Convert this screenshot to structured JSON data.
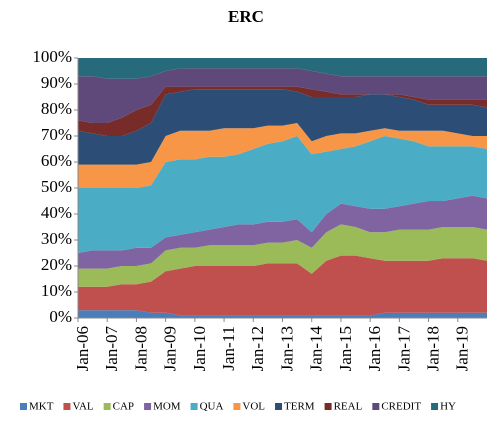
{
  "chart_data": {
    "type": "stacked_area",
    "title": "ERC",
    "categories": [
      "Jan-06",
      null,
      "Jan-07",
      null,
      "Jan-08",
      null,
      "Jan-09",
      null,
      "Jan-10",
      null,
      "Jan-11",
      null,
      "Jan-12",
      null,
      "Jan-13",
      null,
      "Jan-14",
      null,
      "Jan-15",
      null,
      "Jan-16",
      null,
      "Jan-17",
      null,
      "Jan-18",
      null,
      "Jan-19",
      null,
      null
    ],
    "ylim": [
      0,
      100
    ],
    "yticks": [
      {
        "value": 0,
        "label": "0%"
      },
      {
        "value": 10,
        "label": "10%"
      },
      {
        "value": 20,
        "label": "20%"
      },
      {
        "value": 30,
        "label": "30%"
      },
      {
        "value": 40,
        "label": "40%"
      },
      {
        "value": 50,
        "label": "50%"
      },
      {
        "value": 60,
        "label": "60%"
      },
      {
        "value": 70,
        "label": "70%"
      },
      {
        "value": 80,
        "label": "80%"
      },
      {
        "value": 90,
        "label": "90%"
      },
      {
        "value": 100,
        "label": "100%"
      }
    ],
    "legend": "bottom",
    "series": [
      {
        "name": "MKT",
        "color": "#4a7ebb",
        "values": [
          3,
          3,
          3,
          3,
          3,
          2,
          2,
          1,
          1,
          1,
          1,
          1,
          1,
          1,
          1,
          1,
          1,
          1,
          1,
          1,
          1,
          2,
          2,
          2,
          2,
          2,
          2,
          2,
          2
        ]
      },
      {
        "name": "VAL",
        "color": "#c0504d",
        "values": [
          9,
          9,
          9,
          10,
          10,
          12,
          16,
          18,
          19,
          19,
          19,
          19,
          19,
          20,
          20,
          20,
          16,
          21,
          23,
          23,
          22,
          20,
          20,
          20,
          20,
          21,
          21,
          21,
          20
        ]
      },
      {
        "name": "CAP",
        "color": "#9bbb59",
        "values": [
          7,
          7,
          7,
          7,
          7,
          7,
          8,
          8,
          7,
          8,
          8,
          8,
          8,
          8,
          8,
          9,
          10,
          11,
          12,
          11,
          10,
          11,
          12,
          12,
          12,
          12,
          12,
          12,
          12
        ]
      },
      {
        "name": "MOM",
        "color": "#8064a2",
        "values": [
          6,
          7,
          7,
          6,
          7,
          6,
          5,
          5,
          6,
          6,
          7,
          8,
          8,
          8,
          8,
          8,
          6,
          7,
          8,
          8,
          9,
          9,
          9,
          10,
          11,
          10,
          11,
          12,
          12
        ]
      },
      {
        "name": "QUA",
        "color": "#4bacc6",
        "values": [
          25,
          24,
          24,
          24,
          23,
          24,
          29,
          29,
          28,
          28,
          27,
          27,
          29,
          30,
          31,
          32,
          30,
          24,
          21,
          23,
          26,
          28,
          26,
          24,
          21,
          21,
          20,
          19,
          19
        ]
      },
      {
        "name": "VOL",
        "color": "#f79646",
        "values": [
          9,
          9,
          9,
          9,
          9,
          9,
          10,
          11,
          11,
          10,
          11,
          10,
          8,
          7,
          6,
          5,
          5,
          6,
          6,
          5,
          4,
          3,
          3,
          4,
          6,
          6,
          5,
          4,
          5
        ]
      },
      {
        "name": "TERM",
        "color": "#2c4d75",
        "values": [
          13,
          12,
          11,
          11,
          13,
          15,
          16,
          15,
          16,
          16,
          15,
          15,
          15,
          14,
          14,
          12,
          17,
          15,
          14,
          14,
          14,
          13,
          13,
          12,
          10,
          10,
          11,
          12,
          11
        ]
      },
      {
        "name": "REAL",
        "color": "#772c2a",
        "values": [
          4,
          4,
          5,
          7,
          8,
          7,
          3,
          2,
          1,
          1,
          1,
          1,
          1,
          1,
          1,
          2,
          3,
          2,
          1,
          1,
          0,
          0,
          1,
          1,
          2,
          2,
          2,
          2,
          3
        ]
      },
      {
        "name": "CREDIT",
        "color": "#5f497a",
        "values": [
          17,
          18,
          17,
          15,
          12,
          11,
          6,
          7,
          7,
          7,
          7,
          7,
          7,
          7,
          7,
          7,
          7,
          7,
          7,
          7,
          7,
          7,
          7,
          8,
          9,
          9,
          9,
          9,
          9
        ]
      },
      {
        "name": "HY",
        "color": "#276a7c",
        "values": [
          7,
          7,
          8,
          8,
          8,
          7,
          5,
          4,
          4,
          4,
          4,
          4,
          4,
          4,
          4,
          4,
          5,
          6,
          7,
          7,
          7,
          7,
          7,
          7,
          7,
          7,
          7,
          7,
          7
        ]
      }
    ]
  }
}
